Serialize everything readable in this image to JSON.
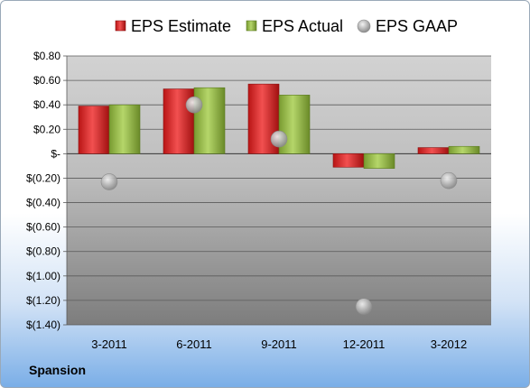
{
  "company": "Spansion",
  "chart_data": {
    "type": "bar",
    "categories": [
      "3-2011",
      "6-2011",
      "9-2011",
      "12-2011",
      "3-2012"
    ],
    "series": [
      {
        "name": "EPS Estimate",
        "kind": "bar",
        "color": "#d42020",
        "values": [
          0.39,
          0.53,
          0.57,
          -0.11,
          0.05
        ]
      },
      {
        "name": "EPS Actual",
        "kind": "bar",
        "color": "#8cb040",
        "values": [
          0.4,
          0.54,
          0.48,
          -0.12,
          0.06
        ]
      },
      {
        "name": "EPS GAAP",
        "kind": "scatter",
        "color": "#b0b0b0",
        "values": [
          -0.23,
          0.4,
          0.12,
          -1.25,
          -0.22
        ]
      }
    ],
    "yticks": [
      "$0.80",
      "$0.60",
      "$0.40",
      "$0.20",
      "$-",
      "$(0.20)",
      "$(0.40)",
      "$(0.60)",
      "$(0.80)",
      "$(1.00)",
      "$(1.20)",
      "$(1.40)"
    ],
    "ylim": [
      -1.4,
      0.8
    ],
    "legend_position": "top",
    "grid": true
  }
}
